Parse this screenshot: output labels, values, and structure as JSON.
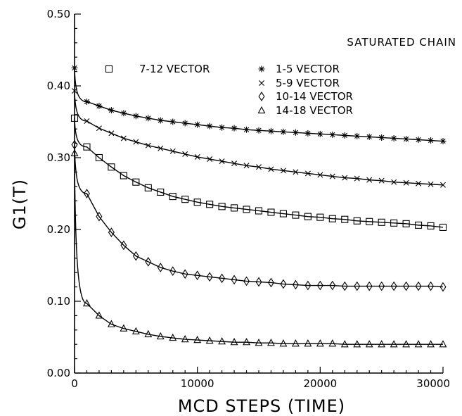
{
  "chart_data": {
    "type": "line",
    "title": "SATURATED CHAIN",
    "xlabel": "MCD STEPS (TIME)",
    "ylabel": "G1(T)",
    "xlim": [
      0,
      30000
    ],
    "ylim": [
      0.0,
      0.5
    ],
    "x_ticks": [
      0,
      10000,
      20000,
      30000
    ],
    "x_tick_labels": [
      "0",
      "10000",
      "20000",
      "30000"
    ],
    "y_ticks": [
      0.0,
      0.1,
      0.2,
      0.3,
      0.4,
      0.5
    ],
    "y_tick_labels": [
      "0.00",
      "0.10",
      "0.20",
      "0.30",
      "0.40",
      "0.50"
    ],
    "grid": false,
    "legend_position": "top-right",
    "series": [
      {
        "name": "1-5 VECTOR",
        "marker": "asterisk",
        "x": [
          0,
          1000,
          2000,
          3000,
          4000,
          5000,
          6000,
          7000,
          8000,
          9000,
          10000,
          11000,
          12000,
          13000,
          14000,
          15000,
          16000,
          17000,
          18000,
          19000,
          20000,
          21000,
          22000,
          23000,
          24000,
          25000,
          26000,
          27000,
          28000,
          29000,
          30000
        ],
        "y": [
          0.425,
          0.378,
          0.372,
          0.366,
          0.362,
          0.358,
          0.355,
          0.352,
          0.35,
          0.348,
          0.346,
          0.344,
          0.342,
          0.341,
          0.339,
          0.338,
          0.337,
          0.336,
          0.335,
          0.334,
          0.333,
          0.332,
          0.331,
          0.33,
          0.329,
          0.328,
          0.327,
          0.326,
          0.325,
          0.324,
          0.323
        ]
      },
      {
        "name": "5-9 VECTOR",
        "marker": "x",
        "x": [
          0,
          1000,
          2000,
          3000,
          4000,
          5000,
          6000,
          7000,
          8000,
          9000,
          10000,
          11000,
          12000,
          13000,
          14000,
          15000,
          16000,
          17000,
          18000,
          19000,
          20000,
          21000,
          22000,
          23000,
          24000,
          25000,
          26000,
          27000,
          28000,
          29000,
          30000
        ],
        "y": [
          0.393,
          0.351,
          0.341,
          0.334,
          0.327,
          0.322,
          0.317,
          0.313,
          0.309,
          0.305,
          0.301,
          0.298,
          0.295,
          0.292,
          0.289,
          0.287,
          0.284,
          0.282,
          0.28,
          0.278,
          0.276,
          0.274,
          0.272,
          0.271,
          0.269,
          0.268,
          0.266,
          0.265,
          0.264,
          0.263,
          0.262
        ]
      },
      {
        "name": "7-12 VECTOR",
        "marker": "square",
        "x": [
          0,
          1000,
          2000,
          3000,
          4000,
          5000,
          6000,
          7000,
          8000,
          9000,
          10000,
          11000,
          12000,
          13000,
          14000,
          15000,
          16000,
          17000,
          18000,
          19000,
          20000,
          21000,
          22000,
          23000,
          24000,
          25000,
          26000,
          27000,
          28000,
          29000,
          30000
        ],
        "y": [
          0.355,
          0.315,
          0.3,
          0.287,
          0.275,
          0.266,
          0.258,
          0.252,
          0.246,
          0.242,
          0.238,
          0.235,
          0.232,
          0.23,
          0.228,
          0.226,
          0.224,
          0.222,
          0.22,
          0.218,
          0.217,
          0.215,
          0.214,
          0.212,
          0.211,
          0.21,
          0.209,
          0.208,
          0.206,
          0.205,
          0.203
        ]
      },
      {
        "name": "10-14 VECTOR",
        "marker": "diamond",
        "x": [
          0,
          1000,
          2000,
          3000,
          4000,
          5000,
          6000,
          7000,
          8000,
          9000,
          10000,
          11000,
          12000,
          13000,
          14000,
          15000,
          16000,
          17000,
          18000,
          19000,
          20000,
          21000,
          22000,
          23000,
          24000,
          25000,
          26000,
          27000,
          28000,
          29000,
          30000
        ],
        "y": [
          0.318,
          0.25,
          0.218,
          0.196,
          0.178,
          0.163,
          0.155,
          0.147,
          0.142,
          0.138,
          0.136,
          0.134,
          0.132,
          0.13,
          0.128,
          0.127,
          0.126,
          0.124,
          0.123,
          0.122,
          0.122,
          0.122,
          0.121,
          0.121,
          0.121,
          0.121,
          0.121,
          0.121,
          0.121,
          0.121,
          0.12
        ]
      },
      {
        "name": "14-18 VECTOR",
        "marker": "triangle",
        "x": [
          0,
          1000,
          2000,
          3000,
          4000,
          5000,
          6000,
          7000,
          8000,
          9000,
          10000,
          11000,
          12000,
          13000,
          14000,
          15000,
          16000,
          17000,
          18000,
          19000,
          20000,
          21000,
          22000,
          23000,
          24000,
          25000,
          26000,
          27000,
          28000,
          29000,
          30000
        ],
        "y": [
          0.306,
          0.097,
          0.08,
          0.068,
          0.062,
          0.058,
          0.054,
          0.051,
          0.049,
          0.047,
          0.046,
          0.045,
          0.044,
          0.043,
          0.043,
          0.042,
          0.042,
          0.041,
          0.041,
          0.041,
          0.041,
          0.041,
          0.04,
          0.04,
          0.04,
          0.04,
          0.04,
          0.04,
          0.04,
          0.04,
          0.04
        ]
      }
    ]
  }
}
